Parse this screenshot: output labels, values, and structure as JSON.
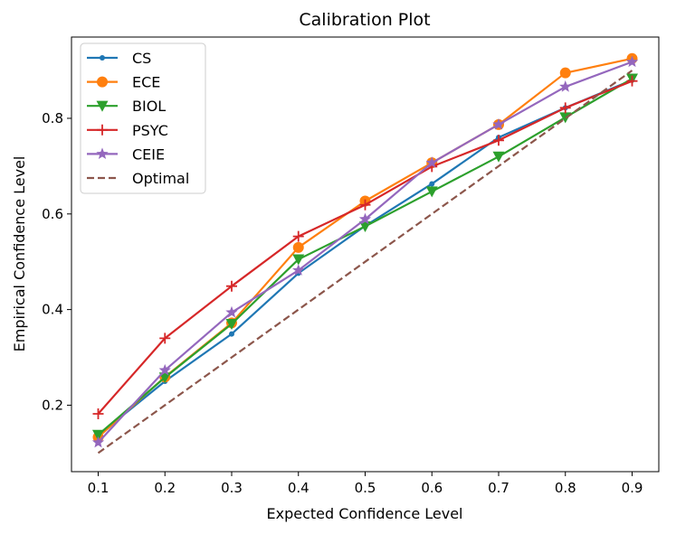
{
  "chart_data": {
    "type": "line",
    "title": "Calibration Plot",
    "xlabel": "Expected Confidence Level",
    "ylabel": "Empirical Confidence Level",
    "x": [
      0.1,
      0.2,
      0.3,
      0.4,
      0.5,
      0.6,
      0.7,
      0.8,
      0.9
    ],
    "xlim": [
      0.06,
      0.94
    ],
    "ylim": [
      0.061,
      0.97
    ],
    "xticks": [
      0.1,
      0.2,
      0.3,
      0.4,
      0.5,
      0.6,
      0.7,
      0.8,
      0.9
    ],
    "xtick_labels": [
      "0.1",
      "0.2",
      "0.3",
      "0.4",
      "0.5",
      "0.6",
      "0.7",
      "0.8",
      "0.9"
    ],
    "yticks": [
      0.2,
      0.4,
      0.6,
      0.8
    ],
    "ytick_labels": [
      "0.2",
      "0.4",
      "0.6",
      "0.8"
    ],
    "grid": false,
    "legend_position": "top-left",
    "series": [
      {
        "name": "CS",
        "color": "#1f77b4",
        "marker": "point",
        "dash": "solid",
        "values": [
          0.137,
          0.25,
          0.349,
          0.476,
          0.575,
          0.663,
          0.76,
          0.822,
          0.88
        ]
      },
      {
        "name": "ECE",
        "color": "#ff7f0e",
        "marker": "circle",
        "dash": "solid",
        "values": [
          0.133,
          0.259,
          0.372,
          0.53,
          0.627,
          0.707,
          0.787,
          0.895,
          0.925
        ]
      },
      {
        "name": "BIOL",
        "color": "#2ca02c",
        "marker": "triangle-down",
        "dash": "solid",
        "values": [
          0.138,
          0.258,
          0.37,
          0.505,
          0.574,
          0.647,
          0.72,
          0.802,
          0.883
        ]
      },
      {
        "name": "PSYC",
        "color": "#d62728",
        "marker": "plus",
        "dash": "solid",
        "values": [
          0.182,
          0.34,
          0.449,
          0.553,
          0.619,
          0.699,
          0.754,
          0.822,
          0.878
        ]
      },
      {
        "name": "CEIE",
        "color": "#9467bd",
        "marker": "star",
        "dash": "solid",
        "values": [
          0.122,
          0.273,
          0.394,
          0.482,
          0.589,
          0.707,
          0.787,
          0.866,
          0.918
        ]
      },
      {
        "name": "Optimal",
        "color": "#8c564b",
        "marker": "none",
        "dash": "dashed",
        "values": [
          0.1,
          0.2,
          0.3,
          0.4,
          0.5,
          0.6,
          0.7,
          0.8,
          0.9
        ]
      }
    ]
  }
}
